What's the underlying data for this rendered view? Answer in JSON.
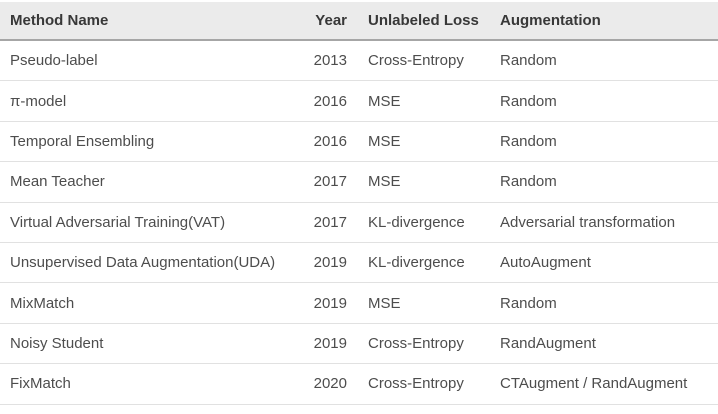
{
  "table": {
    "columns": [
      {
        "label": "Method Name",
        "align": "left"
      },
      {
        "label": "Year",
        "align": "right"
      },
      {
        "label": "Unlabeled Loss",
        "align": "left"
      },
      {
        "label": "Augmentation",
        "align": "left"
      }
    ],
    "rows": [
      [
        "Pseudo-label",
        "2013",
        "Cross-Entropy",
        "Random"
      ],
      [
        "π-model",
        "2016",
        "MSE",
        "Random"
      ],
      [
        "Temporal Ensembling",
        "2016",
        "MSE",
        "Random"
      ],
      [
        "Mean Teacher",
        "2017",
        "MSE",
        "Random"
      ],
      [
        "Virtual Adversarial Training(VAT)",
        "2017",
        "KL-divergence",
        "Adversarial transformation"
      ],
      [
        "Unsupervised Data Augmentation(UDA)",
        "2019",
        "KL-divergence",
        "AutoAugment"
      ],
      [
        "MixMatch",
        "2019",
        "MSE",
        "Random"
      ],
      [
        "Noisy Student",
        "2019",
        "Cross-Entropy",
        "RandAugment"
      ],
      [
        "FixMatch",
        "2020",
        "Cross-Entropy",
        "CTAugment / RandAugment"
      ]
    ]
  },
  "colors": {
    "header_bg": "#ebebeb",
    "header_rule": "#a6a6a6",
    "row_separator": "#e1e1e1",
    "header_text": "#383838",
    "body_text": "#4d4d4d",
    "background": "#ffffff"
  }
}
